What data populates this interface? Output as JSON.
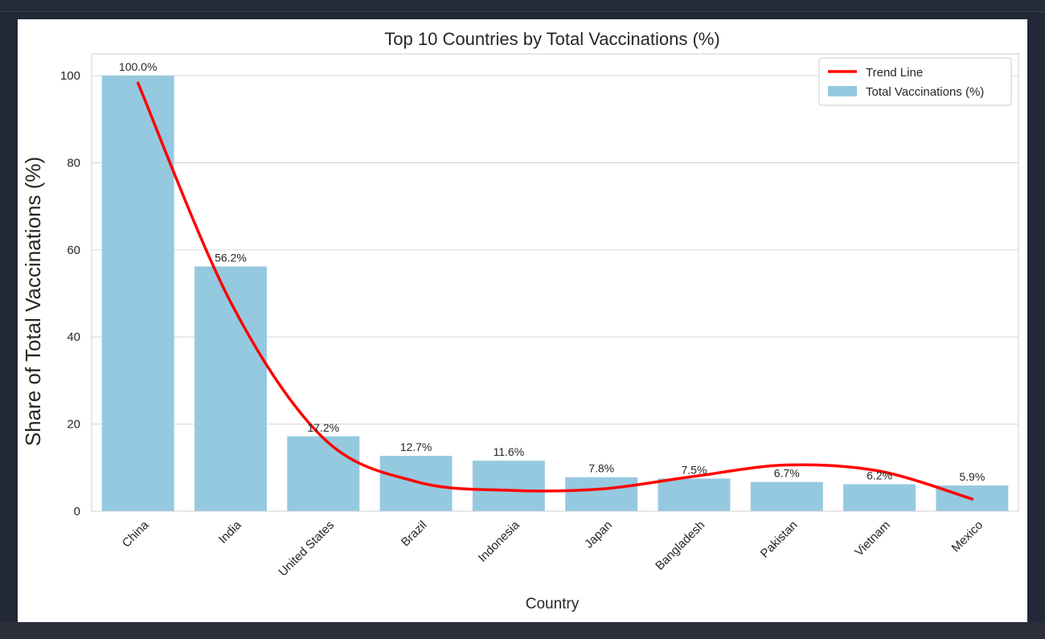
{
  "chart_data": {
    "type": "bar",
    "title": "Top 10 Countries by Total Vaccinations (%)",
    "xlabel": "Country",
    "ylabel": "Share of Total Vaccinations (%)",
    "categories": [
      "China",
      "India",
      "United States",
      "Brazil",
      "Indonesia",
      "Japan",
      "Bangladesh",
      "Pakistan",
      "Vietnam",
      "Mexico"
    ],
    "series": [
      {
        "name": "Total Vaccinations (%)",
        "values": [
          100.0,
          56.2,
          17.2,
          12.7,
          11.6,
          7.8,
          7.5,
          6.7,
          6.2,
          5.9
        ],
        "labels": [
          "100.0%",
          "56.2%",
          "17.2%",
          "12.7%",
          "11.6%",
          "7.8%",
          "7.5%",
          "6.7%",
          "6.2%",
          "5.9%"
        ],
        "color": "#95c9e0"
      },
      {
        "name": "Trend Line",
        "type": "line",
        "values": [
          98.3,
          48.0,
          16.8,
          6.8,
          4.8,
          5.1,
          8.0,
          10.6,
          9.2,
          2.8
        ],
        "color": "#ff0000"
      }
    ],
    "ylim": [
      0,
      105
    ],
    "yticks": [
      0,
      20,
      40,
      60,
      80,
      100
    ],
    "grid": true,
    "legend_position": "top-right"
  },
  "colors": {
    "background": "#232838",
    "figure": "#ffffff",
    "grid": "#d6d6d6",
    "bar": "#95c9e0",
    "trend": "#ff0000",
    "text": "#262626"
  }
}
